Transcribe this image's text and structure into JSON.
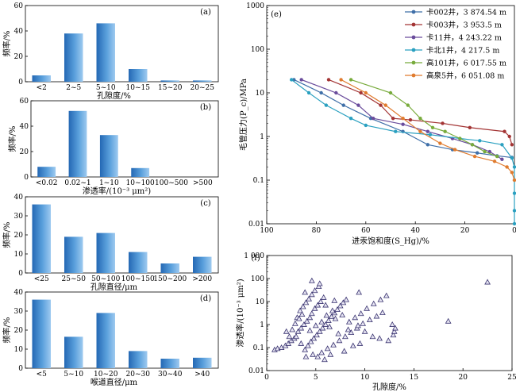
{
  "chart_data": [
    {
      "panel": "(a)",
      "type": "bar",
      "ylabel": "频率/%",
      "xlabel": "孔隙度/%",
      "categories": [
        "<2",
        "2~5",
        "5~10",
        "10~15",
        "15~20",
        "20~25"
      ],
      "values": [
        5,
        38,
        46,
        10,
        1,
        1
      ],
      "ylim": [
        0,
        60
      ],
      "yticks": [
        "0",
        "20",
        "40",
        "60"
      ]
    },
    {
      "panel": "(b)",
      "type": "bar",
      "ylabel": "频率/%",
      "xlabel": "渗透率/(10⁻³ μm²)",
      "categories": [
        "<0.02",
        "0.02~1",
        "1~10",
        "10~100",
        "100~500",
        ">500"
      ],
      "values": [
        8,
        52,
        33,
        7,
        0,
        0
      ],
      "ylim": [
        0,
        60
      ],
      "yticks": [
        "0",
        "20",
        "40",
        "60"
      ]
    },
    {
      "panel": "(c)",
      "type": "bar",
      "ylabel": "频率/%",
      "xlabel": "孔隙直径/μm",
      "categories": [
        "<25",
        "25~50",
        "50~100",
        "100~150",
        "150~200",
        ">200"
      ],
      "values": [
        36,
        19,
        21,
        11,
        5,
        8.5
      ],
      "ylim": [
        0,
        40
      ],
      "yticks": [
        "0",
        "10",
        "20",
        "30",
        "40"
      ]
    },
    {
      "panel": "(d)",
      "type": "bar",
      "ylabel": "频率/%",
      "xlabel": "喉道直径/μm",
      "categories": [
        "<5",
        "5~10",
        "10~20",
        "20~30",
        "30~40",
        ">40"
      ],
      "values": [
        36,
        16.5,
        29,
        9,
        5,
        5.5
      ],
      "ylim": [
        0,
        40
      ],
      "yticks": [
        "0",
        "10",
        "20",
        "30",
        "40"
      ]
    },
    {
      "panel": "(e)",
      "type": "line",
      "xlabel": "进汞饱和度(S_Hg)/%",
      "ylabel": "毛管压力(P_c)/MPa",
      "x_reversed": true,
      "xlim": [
        100,
        0
      ],
      "y_scale": "log",
      "ylim": [
        0.01,
        1000
      ],
      "xticks": [
        "100",
        "80",
        "60",
        "40",
        "20",
        "0"
      ],
      "yticks": [
        "0.01",
        "0.1",
        "1",
        "10",
        "100",
        "1000"
      ],
      "legend_position": "top-right",
      "series": [
        {
          "name": "卡002井，3 874.54 m",
          "color": "#3f6fa8",
          "points": [
            [
              89,
              20
            ],
            [
              78,
              10
            ],
            [
              69,
              5.2
            ],
            [
              58,
              2.6
            ],
            [
              45,
              1.3
            ],
            [
              35,
              0.65
            ],
            [
              25,
              0.5
            ],
            [
              15,
              0.42
            ],
            [
              7,
              0.36
            ],
            [
              1,
              0.33
            ]
          ]
        },
        {
          "name": "卡003井，3 953.5 m",
          "color": "#a33434",
          "points": [
            [
              75,
              20
            ],
            [
              62,
              10
            ],
            [
              54,
              5.2
            ],
            [
              49,
              2.6
            ],
            [
              42,
              2.4
            ],
            [
              29,
              2
            ],
            [
              18,
              1.6
            ],
            [
              4,
              1.3
            ],
            [
              2,
              1
            ],
            [
              1,
              0.65
            ]
          ]
        },
        {
          "name": "卡11井，4 243.22 m",
          "color": "#6a4c9c",
          "points": [
            [
              86,
              20
            ],
            [
              72,
              10
            ],
            [
              63,
              5.2
            ],
            [
              57,
              2.6
            ],
            [
              45,
              1.9
            ],
            [
              35,
              1.3
            ],
            [
              25,
              0.9
            ],
            [
              17,
              0.65
            ],
            [
              10,
              0.45
            ],
            [
              5,
              0.3
            ]
          ]
        },
        {
          "name": "卡北1井，4 217.5 m",
          "color": "#2aa0c0",
          "points": [
            [
              90,
              20
            ],
            [
              83,
              10
            ],
            [
              76,
              5.2
            ],
            [
              66,
              2.6
            ],
            [
              60,
              1.8
            ],
            [
              48,
              1.3
            ],
            [
              34,
              1.1
            ],
            [
              22,
              0.9
            ],
            [
              14,
              0.8
            ],
            [
              5,
              0.65
            ],
            [
              1,
              0.32
            ],
            [
              0,
              0.2
            ],
            [
              0,
              0.1
            ],
            [
              0,
              0.05
            ],
            [
              0,
              0.02
            ],
            [
              0,
              0.01
            ]
          ]
        },
        {
          "name": "高101井，6 017.55 m",
          "color": "#78ab3c",
          "points": [
            [
              66,
              20
            ],
            [
              50,
              10
            ],
            [
              43,
              5.2
            ],
            [
              38,
              2.6
            ],
            [
              33,
              1.6
            ],
            [
              28,
              1.3
            ],
            [
              22,
              0.9
            ],
            [
              17,
              0.65
            ],
            [
              12,
              0.45
            ],
            [
              7,
              0.35
            ]
          ]
        },
        {
          "name": "高泉5井，6 051.08 m",
          "color": "#e07b2e",
          "points": [
            [
              70,
              20
            ],
            [
              60,
              10
            ],
            [
              52,
              5.2
            ],
            [
              45,
              2.6
            ],
            [
              38,
              1.3
            ],
            [
              30,
              0.7
            ],
            [
              24,
              0.5
            ],
            [
              16,
              0.35
            ],
            [
              8,
              0.27
            ],
            [
              3,
              0.2
            ],
            [
              1,
              0.15
            ],
            [
              0,
              0.1
            ]
          ]
        }
      ]
    },
    {
      "panel": "(f)",
      "type": "scatter",
      "xlabel": "孔隙度/%",
      "ylabel": "渗透率/(10⁻³ μm²)",
      "xlim": [
        0,
        25
      ],
      "y_scale": "log",
      "ylim": [
        0.01,
        1000
      ],
      "xticks": [
        "0",
        "5",
        "10",
        "15",
        "20",
        "25"
      ],
      "yticks": [
        "0.01",
        "0.1",
        "1",
        "10",
        "100",
        "1 000"
      ],
      "marker": "open-triangle",
      "points": [
        [
          0.8,
          0.08
        ],
        [
          1.1,
          0.09
        ],
        [
          1.5,
          0.1
        ],
        [
          1.9,
          0.12
        ],
        [
          2.2,
          0.15
        ],
        [
          2.5,
          0.2
        ],
        [
          2.8,
          0.25
        ],
        [
          3,
          0.3
        ],
        [
          3.2,
          0.5
        ],
        [
          3.5,
          0.7
        ],
        [
          3.8,
          1
        ],
        [
          4.1,
          1.4
        ],
        [
          4.4,
          2
        ],
        [
          4.6,
          3
        ],
        [
          4.9,
          5
        ],
        [
          5.2,
          7
        ],
        [
          5.5,
          10
        ],
        [
          5.8,
          15
        ],
        [
          3.1,
          2
        ],
        [
          3.4,
          4
        ],
        [
          3.7,
          6
        ],
        [
          4,
          9
        ],
        [
          4.3,
          13
        ],
        [
          4.6,
          20
        ],
        [
          4.9,
          30
        ],
        [
          5.3,
          45
        ],
        [
          2.6,
          0.6
        ],
        [
          2.9,
          1.1
        ],
        [
          3.3,
          1.8
        ],
        [
          3.6,
          2.8
        ],
        [
          3.9,
          0.08
        ],
        [
          4.2,
          0.12
        ],
        [
          4.5,
          0.18
        ],
        [
          4.8,
          0.25
        ],
        [
          5.1,
          0.35
        ],
        [
          5.4,
          0.5
        ],
        [
          5.7,
          0.7
        ],
        [
          6,
          1
        ],
        [
          6.3,
          1.5
        ],
        [
          6.6,
          2.2
        ],
        [
          6.9,
          3.2
        ],
        [
          7.2,
          4.5
        ],
        [
          7.5,
          6.5
        ],
        [
          7.8,
          9
        ],
        [
          8.1,
          12
        ],
        [
          4,
          0.04
        ],
        [
          4.7,
          0.05
        ],
        [
          5.6,
          0.06
        ],
        [
          6.2,
          0.09
        ],
        [
          6.8,
          0.13
        ],
        [
          7.4,
          0.2
        ],
        [
          8,
          0.3
        ],
        [
          8.6,
          0.45
        ],
        [
          9.2,
          0.7
        ],
        [
          9.8,
          1.1
        ],
        [
          10.5,
          1.6
        ],
        [
          11.2,
          2.3
        ],
        [
          11.8,
          3.3
        ],
        [
          12.4,
          0.2
        ],
        [
          12.9,
          0.35
        ],
        [
          13,
          0.5
        ],
        [
          11.5,
          0.25
        ],
        [
          10.8,
          0.3
        ],
        [
          9.5,
          0.15
        ],
        [
          8.8,
          0.12
        ],
        [
          7.9,
          0.07
        ],
        [
          6.5,
          0.05
        ],
        [
          5.9,
          0.03
        ],
        [
          5.2,
          0.04
        ],
        [
          4.4,
          0.55
        ],
        [
          5,
          0.9
        ],
        [
          5.6,
          1.3
        ],
        [
          6.1,
          2.5
        ],
        [
          6.7,
          4
        ],
        [
          7.3,
          0.4
        ],
        [
          8.3,
          0.6
        ],
        [
          9,
          2
        ],
        [
          9.6,
          3
        ],
        [
          10.2,
          5
        ],
        [
          10.9,
          8
        ],
        [
          11.6,
          12
        ],
        [
          12.2,
          18
        ],
        [
          4.6,
          80
        ],
        [
          5.4,
          60
        ],
        [
          6.4,
          0.8
        ],
        [
          7,
          1.8
        ],
        [
          7.7,
          2.6
        ],
        [
          8.4,
          1.3
        ],
        [
          9.3,
          0.9
        ],
        [
          10,
          0.5
        ],
        [
          2.3,
          0.3
        ],
        [
          2,
          0.5
        ],
        [
          3.5,
          0.15
        ],
        [
          6,
          7
        ],
        [
          6.9,
          11
        ],
        [
          3.9,
          25
        ],
        [
          9.4,
          25
        ],
        [
          12.8,
          1
        ],
        [
          13.1,
          0.7
        ],
        [
          18.5,
          1.4
        ],
        [
          22.5,
          70
        ]
      ]
    }
  ]
}
